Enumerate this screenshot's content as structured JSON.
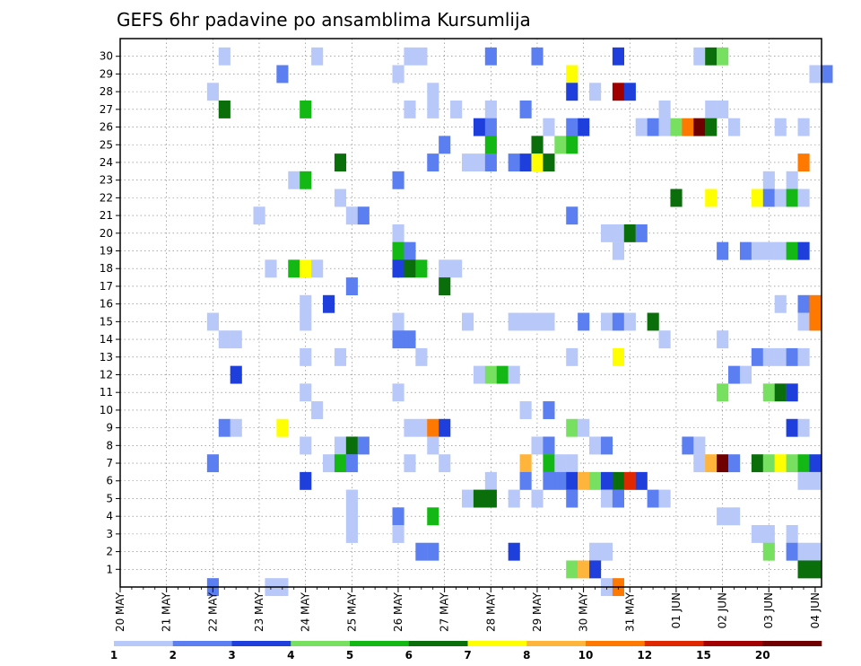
{
  "chart_data": {
    "type": "heatmap",
    "title": "GEFS 6hr padavine po ansamblima Kursumlija",
    "xlabel": "",
    "ylabel": "",
    "x_tick_labels": [
      "20 MAY",
      "21 MAY",
      "22 MAY",
      "23 MAY",
      "24 MAY",
      "25 MAY",
      "26 MAY",
      "27 MAY",
      "28 MAY",
      "29 MAY",
      "30 MAY",
      "31 MAY",
      "01 JUN",
      "02 JUN",
      "03 JUN",
      "04 JUN"
    ],
    "y_tick_labels": [
      "1",
      "2",
      "3",
      "4",
      "5",
      "6",
      "7",
      "8",
      "9",
      "10",
      "11",
      "12",
      "13",
      "14",
      "15",
      "16",
      "17",
      "18",
      "19",
      "20",
      "21",
      "22",
      "23",
      "24",
      "25",
      "26",
      "27",
      "28",
      "29",
      "30"
    ],
    "grid": true,
    "colorbar": {
      "levels": [
        1,
        2,
        3,
        4,
        5,
        6,
        7,
        8,
        10,
        12,
        15,
        20
      ],
      "colors": [
        "#b8c8f8",
        "#5b7ff0",
        "#1e3fdc",
        "#78e060",
        "#14b814",
        "#0a6e0a",
        "#ffff00",
        "#ffb43c",
        "#ff7800",
        "#e02800",
        "#a00000",
        "#6e0000"
      ]
    },
    "time_steps_6h": 60,
    "members": 30,
    "cells": [
      [
        30,
        9,
        0
      ],
      [
        30,
        17,
        0
      ],
      [
        30,
        25,
        0
      ],
      [
        30,
        26,
        0
      ],
      [
        30,
        32,
        1
      ],
      [
        30,
        36,
        1
      ],
      [
        30,
        43,
        2
      ],
      [
        30,
        50,
        0
      ],
      [
        30,
        51,
        5
      ],
      [
        30,
        52,
        3
      ],
      [
        29,
        14,
        1
      ],
      [
        29,
        24,
        0
      ],
      [
        29,
        39,
        6
      ],
      [
        29,
        60,
        0
      ],
      [
        29,
        61,
        1
      ],
      [
        28,
        8,
        0
      ],
      [
        28,
        27,
        0
      ],
      [
        28,
        39,
        2
      ],
      [
        28,
        41,
        0
      ],
      [
        28,
        43,
        10
      ],
      [
        28,
        44,
        2
      ],
      [
        27,
        9,
        5
      ],
      [
        27,
        16,
        4
      ],
      [
        27,
        25,
        0
      ],
      [
        27,
        27,
        0
      ],
      [
        27,
        29,
        0
      ],
      [
        27,
        32,
        0
      ],
      [
        27,
        35,
        1
      ],
      [
        27,
        47,
        0
      ],
      [
        27,
        51,
        0
      ],
      [
        27,
        52,
        0
      ],
      [
        26,
        31,
        2
      ],
      [
        26,
        32,
        1
      ],
      [
        26,
        37,
        0
      ],
      [
        26,
        39,
        1
      ],
      [
        26,
        40,
        2
      ],
      [
        26,
        45,
        0
      ],
      [
        26,
        46,
        1
      ],
      [
        26,
        47,
        0
      ],
      [
        26,
        48,
        3
      ],
      [
        26,
        49,
        8
      ],
      [
        26,
        50,
        11
      ],
      [
        26,
        51,
        5
      ],
      [
        26,
        53,
        0
      ],
      [
        26,
        57,
        0
      ],
      [
        26,
        59,
        0
      ],
      [
        25,
        28,
        1
      ],
      [
        25,
        32,
        4
      ],
      [
        25,
        36,
        5
      ],
      [
        25,
        38,
        3
      ],
      [
        25,
        39,
        4
      ],
      [
        24,
        19,
        5
      ],
      [
        24,
        27,
        1
      ],
      [
        24,
        30,
        0
      ],
      [
        24,
        31,
        0
      ],
      [
        24,
        32,
        1
      ],
      [
        24,
        34,
        1
      ],
      [
        24,
        35,
        2
      ],
      [
        24,
        36,
        6
      ],
      [
        24,
        37,
        5
      ],
      [
        24,
        59,
        8
      ],
      [
        23,
        15,
        0
      ],
      [
        23,
        16,
        4
      ],
      [
        23,
        24,
        1
      ],
      [
        23,
        56,
        0
      ],
      [
        23,
        58,
        0
      ],
      [
        22,
        19,
        0
      ],
      [
        22,
        48,
        5
      ],
      [
        22,
        51,
        6
      ],
      [
        22,
        55,
        6
      ],
      [
        22,
        56,
        1
      ],
      [
        22,
        57,
        0
      ],
      [
        22,
        58,
        4
      ],
      [
        22,
        59,
        0
      ],
      [
        21,
        12,
        0
      ],
      [
        21,
        20,
        0
      ],
      [
        21,
        21,
        1
      ],
      [
        21,
        39,
        1
      ],
      [
        20,
        24,
        0
      ],
      [
        20,
        42,
        0
      ],
      [
        20,
        43,
        0
      ],
      [
        20,
        44,
        5
      ],
      [
        20,
        45,
        1
      ],
      [
        19,
        24,
        4
      ],
      [
        19,
        25,
        1
      ],
      [
        19,
        43,
        0
      ],
      [
        19,
        52,
        1
      ],
      [
        19,
        54,
        1
      ],
      [
        19,
        55,
        0
      ],
      [
        19,
        56,
        0
      ],
      [
        19,
        57,
        0
      ],
      [
        19,
        58,
        4
      ],
      [
        19,
        59,
        2
      ],
      [
        18,
        13,
        0
      ],
      [
        18,
        15,
        4
      ],
      [
        18,
        16,
        6
      ],
      [
        18,
        17,
        0
      ],
      [
        18,
        24,
        2
      ],
      [
        18,
        25,
        5
      ],
      [
        18,
        26,
        4
      ],
      [
        18,
        28,
        0
      ],
      [
        18,
        29,
        0
      ],
      [
        17,
        20,
        1
      ],
      [
        17,
        28,
        5
      ],
      [
        16,
        16,
        0
      ],
      [
        16,
        18,
        2
      ],
      [
        16,
        57,
        0
      ],
      [
        16,
        59,
        1
      ],
      [
        16,
        60,
        8
      ],
      [
        15,
        8,
        0
      ],
      [
        15,
        16,
        0
      ],
      [
        15,
        24,
        0
      ],
      [
        15,
        30,
        0
      ],
      [
        15,
        34,
        0
      ],
      [
        15,
        35,
        0
      ],
      [
        15,
        36,
        0
      ],
      [
        15,
        37,
        0
      ],
      [
        15,
        40,
        1
      ],
      [
        15,
        42,
        0
      ],
      [
        15,
        43,
        1
      ],
      [
        15,
        44,
        0
      ],
      [
        15,
        46,
        5
      ],
      [
        15,
        59,
        0
      ],
      [
        15,
        60,
        8
      ],
      [
        14,
        9,
        0
      ],
      [
        14,
        10,
        0
      ],
      [
        14,
        24,
        1
      ],
      [
        14,
        25,
        1
      ],
      [
        14,
        47,
        0
      ],
      [
        14,
        52,
        0
      ],
      [
        13,
        16,
        0
      ],
      [
        13,
        19,
        0
      ],
      [
        13,
        26,
        0
      ],
      [
        13,
        39,
        0
      ],
      [
        13,
        43,
        6
      ],
      [
        13,
        55,
        1
      ],
      [
        13,
        56,
        0
      ],
      [
        13,
        57,
        0
      ],
      [
        13,
        58,
        1
      ],
      [
        13,
        59,
        0
      ],
      [
        12,
        10,
        2
      ],
      [
        12,
        31,
        0
      ],
      [
        12,
        32,
        3
      ],
      [
        12,
        33,
        4
      ],
      [
        12,
        34,
        0
      ],
      [
        12,
        53,
        1
      ],
      [
        12,
        54,
        0
      ],
      [
        11,
        16,
        0
      ],
      [
        11,
        24,
        0
      ],
      [
        11,
        52,
        3
      ],
      [
        11,
        56,
        3
      ],
      [
        11,
        57,
        5
      ],
      [
        11,
        58,
        2
      ],
      [
        10,
        17,
        0
      ],
      [
        10,
        35,
        0
      ],
      [
        10,
        37,
        1
      ],
      [
        9,
        9,
        1
      ],
      [
        9,
        10,
        0
      ],
      [
        9,
        14,
        6
      ],
      [
        9,
        25,
        0
      ],
      [
        9,
        26,
        0
      ],
      [
        9,
        27,
        8
      ],
      [
        9,
        28,
        2
      ],
      [
        9,
        39,
        3
      ],
      [
        9,
        40,
        0
      ],
      [
        9,
        58,
        2
      ],
      [
        9,
        59,
        0
      ],
      [
        8,
        16,
        0
      ],
      [
        8,
        19,
        0
      ],
      [
        8,
        20,
        5
      ],
      [
        8,
        21,
        1
      ],
      [
        8,
        27,
        0
      ],
      [
        8,
        36,
        0
      ],
      [
        8,
        37,
        1
      ],
      [
        8,
        41,
        0
      ],
      [
        8,
        42,
        1
      ],
      [
        8,
        49,
        1
      ],
      [
        8,
        50,
        0
      ],
      [
        7,
        8,
        1
      ],
      [
        7,
        18,
        0
      ],
      [
        7,
        19,
        4
      ],
      [
        7,
        20,
        1
      ],
      [
        7,
        25,
        0
      ],
      [
        7,
        28,
        0
      ],
      [
        7,
        35,
        7
      ],
      [
        7,
        37,
        4
      ],
      [
        7,
        38,
        0
      ],
      [
        7,
        39,
        0
      ],
      [
        7,
        50,
        0
      ],
      [
        7,
        51,
        7
      ],
      [
        7,
        52,
        11
      ],
      [
        7,
        53,
        1
      ],
      [
        7,
        55,
        5
      ],
      [
        7,
        56,
        3
      ],
      [
        7,
        57,
        6
      ],
      [
        7,
        58,
        3
      ],
      [
        7,
        59,
        4
      ],
      [
        7,
        60,
        2
      ],
      [
        6,
        16,
        2
      ],
      [
        6,
        32,
        0
      ],
      [
        6,
        35,
        1
      ],
      [
        6,
        37,
        1
      ],
      [
        6,
        38,
        1
      ],
      [
        6,
        39,
        2
      ],
      [
        6,
        40,
        7
      ],
      [
        6,
        41,
        3
      ],
      [
        6,
        42,
        2
      ],
      [
        6,
        43,
        5
      ],
      [
        6,
        44,
        9
      ],
      [
        6,
        45,
        2
      ],
      [
        6,
        59,
        0
      ],
      [
        6,
        60,
        0
      ],
      [
        5,
        20,
        0
      ],
      [
        5,
        30,
        0
      ],
      [
        5,
        31,
        5
      ],
      [
        5,
        32,
        5
      ],
      [
        5,
        34,
        0
      ],
      [
        5,
        36,
        0
      ],
      [
        5,
        39,
        1
      ],
      [
        5,
        42,
        0
      ],
      [
        5,
        43,
        1
      ],
      [
        5,
        46,
        1
      ],
      [
        5,
        47,
        0
      ],
      [
        4,
        20,
        0
      ],
      [
        4,
        24,
        1
      ],
      [
        4,
        27,
        4
      ],
      [
        4,
        52,
        0
      ],
      [
        4,
        53,
        0
      ],
      [
        3,
        20,
        0
      ],
      [
        3,
        24,
        0
      ],
      [
        3,
        55,
        0
      ],
      [
        3,
        56,
        0
      ],
      [
        3,
        58,
        0
      ],
      [
        2,
        26,
        1
      ],
      [
        2,
        27,
        1
      ],
      [
        2,
        34,
        2
      ],
      [
        2,
        41,
        0
      ],
      [
        2,
        42,
        0
      ],
      [
        2,
        56,
        3
      ],
      [
        2,
        58,
        1
      ],
      [
        2,
        59,
        0
      ],
      [
        2,
        60,
        0
      ],
      [
        1,
        39,
        3
      ],
      [
        1,
        40,
        7
      ],
      [
        1,
        41,
        2
      ],
      [
        1,
        59,
        5
      ],
      [
        1,
        60,
        5
      ],
      [
        0,
        8,
        1
      ],
      [
        0,
        13,
        0
      ],
      [
        0,
        14,
        0
      ],
      [
        0,
        42,
        0
      ],
      [
        0,
        43,
        8
      ]
    ]
  }
}
